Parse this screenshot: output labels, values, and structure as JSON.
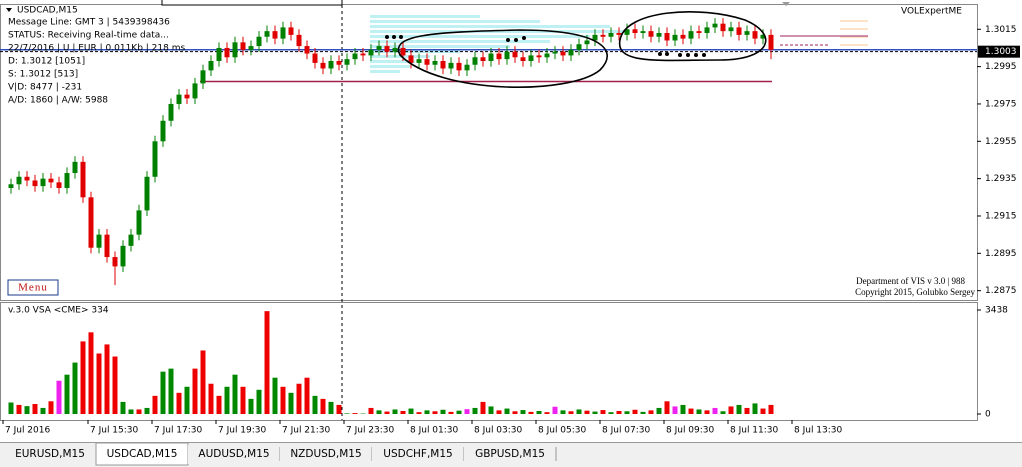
{
  "symbol_title": "USDCAD,M15",
  "info_lines": [
    "Message Line: GMT 3 | 5439398436",
    "STATUS:  Receiving Real-time data...",
    "22/7/2016 | U | EUR | 0.011Kb | 218 ms",
    "D: 1.3012  [1051]",
    "S: 1.3012  [513]",
    "V|D: 8477 | -231",
    "A/D: 1860 | A/W: 5988"
  ],
  "indicator_name": "VOLExpertME",
  "menu_button": "Menu",
  "credits": [
    "Department of VIS  v 3.0 | 988",
    "Copyright 2015, Golubko Sergey"
  ],
  "tabs": [
    "EURUSD,M15",
    "USDCAD,M15",
    "AUDUSD,M15",
    "NZDUSD,M15",
    "USDCHF,M15",
    "GBPUSD,M15"
  ],
  "active_tab": "USDCAD,M15",
  "chart_data": [
    {
      "type": "candlestick",
      "up_color": "#008000",
      "down_color": "#e00000",
      "ylim": [
        1.287,
        1.3028
      ],
      "yticks": [
        1.2875,
        1.2895,
        1.2915,
        1.2935,
        1.2955,
        1.2975,
        1.2995,
        1.3015
      ],
      "current_price": 1.3003,
      "levels": [
        {
          "price": 1.3004,
          "color": "#3050c0"
        },
        {
          "price": 1.2987,
          "color": "#a0204a"
        }
      ],
      "xlabels": [
        "7 Jul 2016",
        "7 Jul 15:30",
        "7 Jul 17:30",
        "7 Jul 19:30",
        "7 Jul 21:30",
        "7 Jul 23:30",
        "8 Jul 01:30",
        "8 Jul 03:30",
        "8 Jul 05:30",
        "8 Jul 07:30",
        "8 Jul 09:30",
        "8 Jul 11:30",
        "8 Jul 13:30"
      ],
      "ohlc": [
        [
          1.293,
          1.2935,
          1.2927,
          1.2932
        ],
        [
          1.2932,
          1.2939,
          1.2929,
          1.2936
        ],
        [
          1.2936,
          1.2939,
          1.2931,
          1.2934
        ],
        [
          1.2934,
          1.2937,
          1.2928,
          1.2931
        ],
        [
          1.2931,
          1.2938,
          1.2928,
          1.2935
        ],
        [
          1.2935,
          1.2938,
          1.293,
          1.2933
        ],
        [
          1.2933,
          1.2936,
          1.2927,
          1.293
        ],
        [
          1.293,
          1.2941,
          1.2927,
          1.2938
        ],
        [
          1.2938,
          1.2947,
          1.2935,
          1.2944
        ],
        [
          1.2944,
          1.2947,
          1.2922,
          1.2925
        ],
        [
          1.2925,
          1.2928,
          1.2895,
          1.2898
        ],
        [
          1.2898,
          1.2908,
          1.2895,
          1.2905
        ],
        [
          1.2905,
          1.2908,
          1.289,
          1.2893
        ],
        [
          1.2893,
          1.2896,
          1.2878,
          1.2888
        ],
        [
          1.2888,
          1.2902,
          1.2885,
          1.2899
        ],
        [
          1.2899,
          1.2908,
          1.2896,
          1.2905
        ],
        [
          1.2905,
          1.2921,
          1.2902,
          1.2918
        ],
        [
          1.2918,
          1.2939,
          1.2915,
          1.2936
        ],
        [
          1.2936,
          1.2958,
          1.2933,
          1.2955
        ],
        [
          1.2955,
          1.2969,
          1.2952,
          1.2966
        ],
        [
          1.2966,
          1.2978,
          1.2963,
          1.2975
        ],
        [
          1.2975,
          1.2983,
          1.2972,
          1.298
        ],
        [
          1.298,
          1.2983,
          1.2975,
          1.2978
        ],
        [
          1.2978,
          1.2989,
          1.2975,
          1.2986
        ],
        [
          1.2986,
          1.2996,
          1.2983,
          1.2993
        ],
        [
          1.2993,
          1.3001,
          1.299,
          1.2998
        ],
        [
          1.2998,
          1.3008,
          1.2995,
          1.3005
        ],
        [
          1.3005,
          1.3008,
          1.2997,
          1.3
        ],
        [
          1.3,
          1.3011,
          1.2997,
          1.3008
        ],
        [
          1.3008,
          1.3011,
          1.3001,
          1.3004
        ],
        [
          1.3004,
          1.3009,
          1.3001,
          1.3006
        ],
        [
          1.3006,
          1.3014,
          1.3003,
          1.3011
        ],
        [
          1.3011,
          1.3017,
          1.3008,
          1.3014
        ],
        [
          1.3014,
          1.3017,
          1.3007,
          1.301
        ],
        [
          1.301,
          1.3019,
          1.3007,
          1.3016
        ],
        [
          1.3016,
          1.3019,
          1.3009,
          1.3012
        ],
        [
          1.3012,
          1.3015,
          1.3003,
          1.3006
        ],
        [
          1.3006,
          1.3009,
          1.2999,
          1.3002
        ],
        [
          1.3002,
          1.3005,
          1.2994,
          1.2997
        ],
        [
          1.2997,
          1.3,
          1.2991,
          1.2994
        ],
        [
          1.2994,
          1.3001,
          1.2991,
          1.2998
        ],
        [
          1.2998,
          1.3001,
          1.2993,
          1.2996
        ],
        [
          1.2996,
          1.3002,
          1.2993,
          1.2999
        ],
        [
          1.2999,
          1.3005,
          1.2996,
          1.3002
        ],
        [
          1.3002,
          1.3005,
          1.2998,
          1.3001
        ],
        [
          1.3001,
          1.3007,
          1.2998,
          1.3004
        ],
        [
          1.3004,
          1.3009,
          1.3001,
          1.3006
        ],
        [
          1.3006,
          1.3009,
          1.3,
          1.3003
        ],
        [
          1.3003,
          1.3008,
          1.3,
          1.3005
        ],
        [
          1.3005,
          1.3008,
          1.2998,
          1.3001
        ],
        [
          1.3001,
          1.3004,
          1.2994,
          1.2997
        ],
        [
          1.2997,
          1.3002,
          1.2994,
          1.2999
        ],
        [
          1.2999,
          1.3002,
          1.2993,
          1.2996
        ],
        [
          1.2996,
          1.3001,
          1.2993,
          1.2998
        ],
        [
          1.2998,
          1.3001,
          1.2991,
          1.2994
        ],
        [
          1.2994,
          1.3,
          1.2991,
          1.2997
        ],
        [
          1.2997,
          1.3,
          1.299,
          1.2993
        ],
        [
          1.2993,
          1.2999,
          1.299,
          1.2996
        ],
        [
          1.2996,
          1.3003,
          1.2993,
          1.3
        ],
        [
          1.3,
          1.3003,
          1.2995,
          1.2998
        ],
        [
          1.2998,
          1.3005,
          1.2995,
          1.3002
        ],
        [
          1.3002,
          1.3005,
          1.2996,
          1.2999
        ],
        [
          1.2999,
          1.3006,
          1.2996,
          1.3003
        ],
        [
          1.3003,
          1.3006,
          1.2997,
          1.3
        ],
        [
          1.3,
          1.3003,
          1.2995,
          1.2998
        ],
        [
          1.2998,
          1.3004,
          1.2995,
          1.3001
        ],
        [
          1.3001,
          1.3004,
          1.2997,
          1.3
        ],
        [
          1.3,
          1.3005,
          1.2997,
          1.3002
        ],
        [
          1.3002,
          1.3006,
          1.2999,
          1.3003
        ],
        [
          1.3003,
          1.3006,
          1.2998,
          1.3001
        ],
        [
          1.3001,
          1.3007,
          1.2998,
          1.3004
        ],
        [
          1.3004,
          1.301,
          1.3001,
          1.3007
        ],
        [
          1.3007,
          1.3012,
          1.3004,
          1.3009
        ],
        [
          1.3009,
          1.3015,
          1.3006,
          1.3012
        ],
        [
          1.3012,
          1.3015,
          1.3008,
          1.3011
        ],
        [
          1.3011,
          1.3016,
          1.3008,
          1.3013
        ],
        [
          1.3013,
          1.3016,
          1.3009,
          1.3012
        ],
        [
          1.3012,
          1.3018,
          1.3009,
          1.3015
        ],
        [
          1.3015,
          1.3018,
          1.301,
          1.3013
        ],
        [
          1.3013,
          1.3017,
          1.301,
          1.3014
        ],
        [
          1.3014,
          1.3017,
          1.3008,
          1.3011
        ],
        [
          1.3011,
          1.3016,
          1.3008,
          1.3013
        ],
        [
          1.3013,
          1.3016,
          1.3006,
          1.3009
        ],
        [
          1.3009,
          1.3015,
          1.3006,
          1.3012
        ],
        [
          1.3012,
          1.3015,
          1.3007,
          1.301
        ],
        [
          1.301,
          1.3017,
          1.3007,
          1.3014
        ],
        [
          1.3014,
          1.3017,
          1.301,
          1.3013
        ],
        [
          1.3013,
          1.3019,
          1.301,
          1.3016
        ],
        [
          1.3016,
          1.3021,
          1.3013,
          1.3018
        ],
        [
          1.3018,
          1.3021,
          1.3011,
          1.3014
        ],
        [
          1.3014,
          1.3019,
          1.3011,
          1.3016
        ],
        [
          1.3016,
          1.3019,
          1.3009,
          1.3012
        ],
        [
          1.3012,
          1.3017,
          1.3009,
          1.3014
        ],
        [
          1.3014,
          1.3017,
          1.3007,
          1.301
        ],
        [
          1.301,
          1.3015,
          1.3007,
          1.3012
        ],
        [
          1.3012,
          1.3015,
          1.2999,
          1.3004
        ]
      ]
    },
    {
      "type": "bar",
      "title": "v.3.0 VSA <CME> 334",
      "ylim": [
        0,
        3438
      ],
      "yticks": [
        0,
        3438
      ],
      "values": [
        380,
        300,
        260,
        330,
        200,
        420,
        1100,
        1300,
        1700,
        2400,
        2700,
        2000,
        2300,
        1900,
        400,
        150,
        150,
        200,
        600,
        1400,
        1500,
        700,
        900,
        1500,
        2100,
        1000,
        600,
        900,
        1300,
        900,
        500,
        800,
        3400,
        1200,
        900,
        700,
        1000,
        1200,
        600,
        500,
        400,
        300,
        20,
        30,
        15,
        200,
        120,
        80,
        150,
        100,
        180,
        60,
        120,
        90,
        140,
        70,
        110,
        160,
        200,
        400,
        250,
        120,
        180,
        90,
        130,
        70,
        100,
        60,
        240,
        120,
        90,
        150,
        110,
        80,
        130,
        60,
        100,
        90,
        140,
        70,
        120,
        200,
        420,
        250,
        300,
        180,
        150,
        120,
        200,
        90,
        250,
        300,
        200,
        350,
        180,
        300
      ],
      "colors": [
        "#080",
        "#e00",
        "#080",
        "#e00",
        "#080",
        "#e00",
        "#e2e",
        "#080",
        "#080",
        "#e00",
        "#e00",
        "#e00",
        "#e00",
        "#e00",
        "#080",
        "#080",
        "#e00",
        "#080",
        "#e00",
        "#080",
        "#080",
        "#e00",
        "#080",
        "#e00",
        "#e00",
        "#e00",
        "#e00",
        "#080",
        "#080",
        "#e00",
        "#080",
        "#080",
        "#e00",
        "#080",
        "#e00",
        "#080",
        "#e00",
        "#e00",
        "#080",
        "#e00",
        "#080",
        "#e00",
        "#080",
        "#e00",
        "#080",
        "#e00",
        "#080",
        "#e00",
        "#080",
        "#e00",
        "#080",
        "#e00",
        "#080",
        "#e00",
        "#080",
        "#e00",
        "#080",
        "#e2e",
        "#080",
        "#e00",
        "#080",
        "#e00",
        "#080",
        "#e00",
        "#080",
        "#e00",
        "#080",
        "#e00",
        "#e2e",
        "#080",
        "#e00",
        "#080",
        "#e00",
        "#080",
        "#e00",
        "#080",
        "#e00",
        "#080",
        "#e00",
        "#080",
        "#e00",
        "#080",
        "#e00",
        "#e2e",
        "#080",
        "#e00",
        "#080",
        "#e00",
        "#e2e",
        "#080",
        "#e00",
        "#080",
        "#e00",
        "#080",
        "#e00",
        "#e00"
      ]
    }
  ]
}
